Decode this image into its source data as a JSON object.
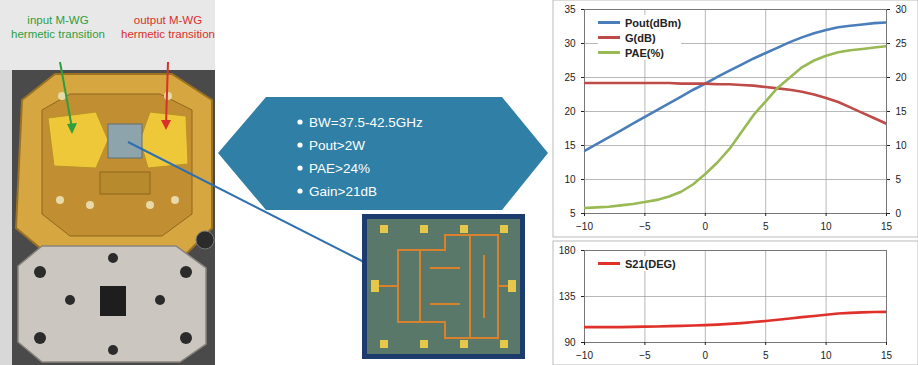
{
  "chart_data": [
    {
      "type": "line",
      "x": [
        -10,
        -9,
        -8,
        -7,
        -6,
        -5,
        -4,
        -3,
        -2,
        -1,
        0,
        1,
        2,
        3,
        4,
        5,
        6,
        7,
        8,
        9,
        10,
        11,
        12,
        13,
        14,
        15
      ],
      "xlim": [
        -10,
        15
      ],
      "xticks": [
        -10,
        -5,
        0,
        5,
        10,
        15
      ],
      "ylim": [
        5,
        35
      ],
      "yticks": [
        5,
        10,
        15,
        20,
        25,
        30,
        35
      ],
      "y2lim": [
        0,
        30
      ],
      "y2ticks": [
        0,
        5,
        10,
        15,
        20,
        25,
        30
      ],
      "grid": true,
      "legend": "upper left",
      "series": [
        {
          "name": "Pout(dBm)",
          "color": "#4a7ebb",
          "values": [
            14.2,
            15.2,
            16.2,
            17.2,
            18.2,
            19.2,
            20.2,
            21.2,
            22.2,
            23.2,
            24.1,
            25.1,
            26,
            26.9,
            27.8,
            28.6,
            29.4,
            30.2,
            30.9,
            31.5,
            32,
            32.4,
            32.6,
            32.8,
            33,
            33.1
          ]
        },
        {
          "name": "G(dB)",
          "color": "#be4b48",
          "values": [
            24.2,
            24.2,
            24.2,
            24.2,
            24.2,
            24.2,
            24.2,
            24.2,
            24.1,
            24.1,
            24.1,
            24,
            24,
            23.9,
            23.8,
            23.6,
            23.4,
            23.2,
            22.9,
            22.5,
            22,
            21.4,
            20.6,
            19.8,
            19,
            18.2
          ]
        },
        {
          "name": "PAE(%)",
          "color": "#98b954",
          "axis": "y2",
          "values": [
            0.8,
            0.9,
            1,
            1.2,
            1.4,
            1.7,
            2,
            2.5,
            3.2,
            4.3,
            5.8,
            7.5,
            9.5,
            12,
            14.5,
            16.5,
            18.5,
            20,
            21.5,
            22.5,
            23.2,
            23.7,
            24,
            24.2,
            24.4,
            24.6
          ]
        }
      ]
    },
    {
      "type": "line",
      "x": [
        -10,
        -9,
        -8,
        -7,
        -6,
        -5,
        -4,
        -3,
        -2,
        -1,
        0,
        1,
        2,
        3,
        4,
        5,
        6,
        7,
        8,
        9,
        10,
        11,
        12,
        13,
        14,
        15
      ],
      "xlim": [
        -10,
        15
      ],
      "xticks": [
        -10,
        -5,
        0,
        5,
        10,
        15
      ],
      "ylim": [
        90,
        180
      ],
      "yticks": [
        90,
        135,
        180
      ],
      "grid": true,
      "legend": "upper left",
      "series": [
        {
          "name": "S21(DEG)",
          "color": "#e0302a",
          "values": [
            105,
            105,
            105,
            105,
            105.3,
            105.5,
            105.7,
            106,
            106.3,
            106.7,
            107,
            107.5,
            108.2,
            109,
            110,
            111,
            112.2,
            113.5,
            114.8,
            116,
            117.2,
            118.3,
            119,
            119.5,
            119.8,
            120
          ]
        }
      ]
    }
  ],
  "photo_labels": [
    {
      "lines": [
        "input M-WG",
        "hermetic transition"
      ]
    },
    {
      "lines": [
        "output M-WG",
        "hermetic transition"
      ]
    }
  ],
  "specs": [
    "BW=37.5-42.5GHz",
    "Pout>2W",
    "PAE>24%",
    "Gain>21dB"
  ]
}
